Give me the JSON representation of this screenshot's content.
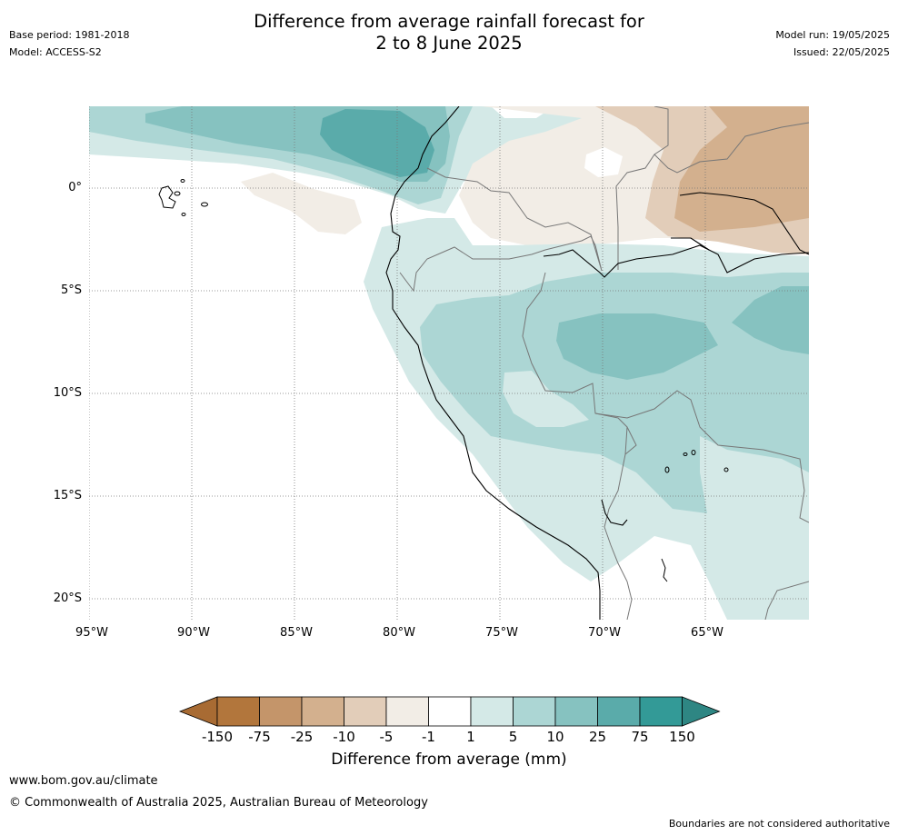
{
  "header": {
    "title_line1": "Difference from average rainfall forecast for",
    "title_line2": "2 to 8 June 2025",
    "base_period": "Base period: 1981-2018",
    "model": "Model: ACCESS-S2",
    "model_run": "Model run: 19/05/2025",
    "issued": "Issued: 22/05/2025"
  },
  "map": {
    "latitude_labels": [
      "0°",
      "5°S",
      "10°S",
      "15°S",
      "20°S"
    ],
    "longitude_labels": [
      "95°W",
      "90°W",
      "85°W",
      "80°W",
      "75°W",
      "70°W",
      "65°W"
    ],
    "grid_style": "dotted"
  },
  "colorbar": {
    "title": "Difference from average (mm)",
    "tick_labels": [
      "-150",
      "-75",
      "-25",
      "-10",
      "-5",
      "-1",
      "1",
      "5",
      "10",
      "25",
      "75",
      "150"
    ],
    "colors": [
      "#a86b33",
      "#b2763c",
      "#c4956a",
      "#d3b08e",
      "#e2cdb9",
      "#f2ede6",
      "#ffffff",
      "#d4e9e7",
      "#acd6d4",
      "#86c2c0",
      "#5aabaa",
      "#339a97",
      "#2e8683"
    ]
  },
  "footer": {
    "website": "www.bom.gov.au/climate",
    "copyright": "© Commonwealth of Australia 2025, Australian Bureau of Meteorology",
    "disclaimer": "Boundaries are not considered authoritative"
  }
}
